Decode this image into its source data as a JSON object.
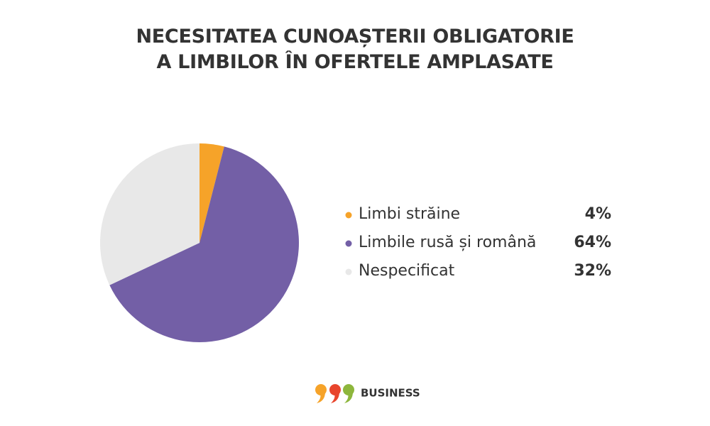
{
  "chart_data": {
    "type": "pie",
    "title": "NECESITATEA CUNOAȘTERII OBLIGATORIE A LIMBILOR ÎN OFERTELE AMPLASATE",
    "categories": [
      "Limbi străine",
      "Limbile rusă și română",
      "Nespecificat"
    ],
    "values": [
      4,
      64,
      32
    ],
    "value_labels": [
      "4%",
      "64%",
      "32%"
    ],
    "colors": [
      "#f6a329",
      "#735fa6",
      "#e8e8e8"
    ]
  },
  "footer": {
    "brand": "BUSINESS"
  }
}
